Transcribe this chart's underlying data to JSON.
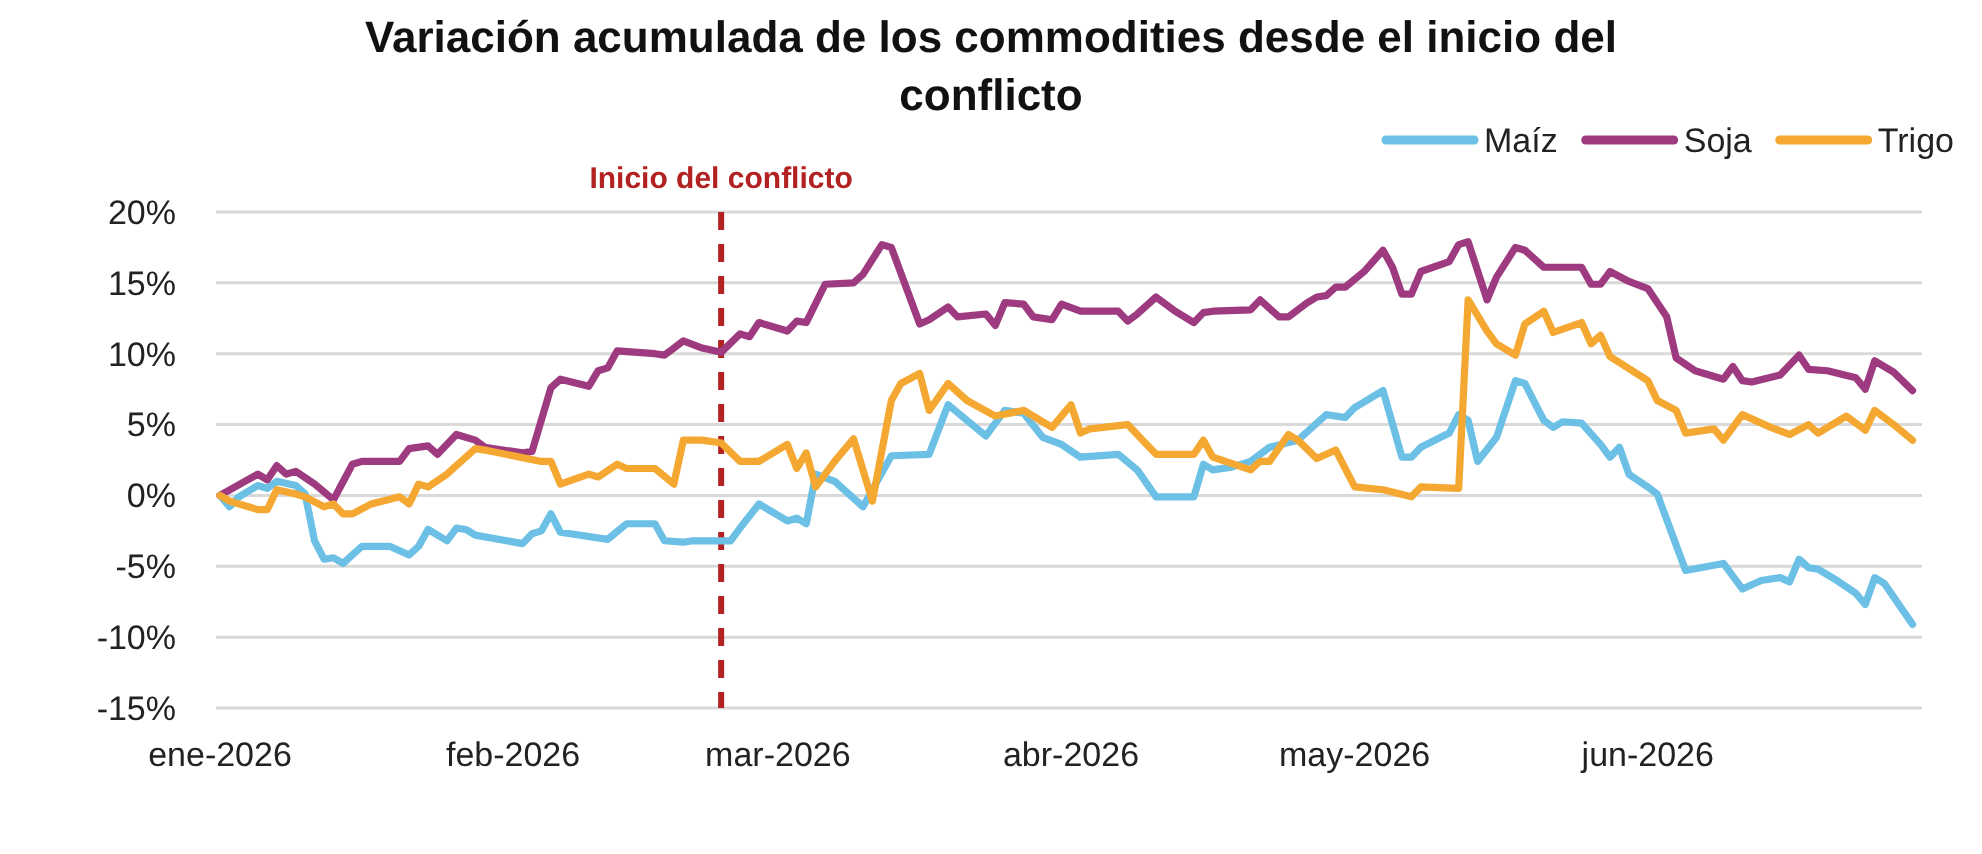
{
  "chart_data": {
    "type": "line",
    "title": "Variación acumulada de los commodities desde el inicio del conflicto",
    "xlim": [
      "2026-01-01",
      "2026-06-30"
    ],
    "xticks": [
      {
        "value": "2026-01-01",
        "label": "ene-2026"
      },
      {
        "value": "2026-02-01",
        "label": "feb-2026"
      },
      {
        "value": "2026-03-01",
        "label": "mar-2026"
      },
      {
        "value": "2026-04-01",
        "label": "abr-2026"
      },
      {
        "value": "2026-05-01",
        "label": "may-2026"
      },
      {
        "value": "2026-06-01",
        "label": "jun-2026"
      }
    ],
    "ylim": [
      -15,
      20
    ],
    "yticks": [
      {
        "value": -15,
        "label": "-15%"
      },
      {
        "value": -10,
        "label": "-10%"
      },
      {
        "value": -5,
        "label": "-5%"
      },
      {
        "value": 0,
        "label": "0%"
      },
      {
        "value": 5,
        "label": "5%"
      },
      {
        "value": 10,
        "label": "10%"
      },
      {
        "value": 15,
        "label": "15%"
      },
      {
        "value": 20,
        "label": "20%"
      }
    ],
    "grid": "y",
    "legend": "top right",
    "ref_lines": [
      {
        "axis": "x",
        "value": "2026-02-23",
        "label": "Inicio del conflicto",
        "color": "#b22222",
        "line_style": "dashed"
      }
    ],
    "series": [
      {
        "name": "Maíz",
        "color": "#6cc0e5",
        "x": [
          "2026-01-01",
          "2026-01-02",
          "2026-01-03",
          "2026-01-05",
          "2026-01-06",
          "2026-01-07",
          "2026-01-09",
          "2026-01-10",
          "2026-01-11",
          "2026-01-12",
          "2026-01-13",
          "2026-01-14",
          "2026-01-16",
          "2026-01-19",
          "2026-01-21",
          "2026-01-22",
          "2026-01-23",
          "2026-01-25",
          "2026-01-26",
          "2026-01-27",
          "2026-01-28",
          "2026-02-02",
          "2026-02-03",
          "2026-02-04",
          "2026-02-05",
          "2026-02-06",
          "2026-02-11",
          "2026-02-13",
          "2026-02-16",
          "2026-02-17",
          "2026-02-19",
          "2026-02-20",
          "2026-02-24",
          "2026-02-25",
          "2026-02-27",
          "2026-03-02",
          "2026-03-03",
          "2026-03-04",
          "2026-03-05",
          "2026-03-07",
          "2026-03-10",
          "2026-03-13",
          "2026-03-17",
          "2026-03-19",
          "2026-03-23",
          "2026-03-25",
          "2026-03-27",
          "2026-03-29",
          "2026-03-31",
          "2026-04-02",
          "2026-04-06",
          "2026-04-08",
          "2026-04-10",
          "2026-04-14",
          "2026-04-15",
          "2026-04-16",
          "2026-04-18",
          "2026-04-20",
          "2026-04-22",
          "2026-04-25",
          "2026-04-26",
          "2026-04-28",
          "2026-04-30",
          "2026-05-01",
          "2026-05-04",
          "2026-05-06",
          "2026-05-07",
          "2026-05-08",
          "2026-05-11",
          "2026-05-12",
          "2026-05-13",
          "2026-05-14",
          "2026-05-16",
          "2026-05-18",
          "2026-05-19",
          "2026-05-21",
          "2026-05-22",
          "2026-05-23",
          "2026-05-25",
          "2026-05-27",
          "2026-05-28",
          "2026-05-29",
          "2026-05-30",
          "2026-06-01",
          "2026-06-02",
          "2026-06-05",
          "2026-06-09",
          "2026-06-11",
          "2026-06-13",
          "2026-06-15",
          "2026-06-16",
          "2026-06-17",
          "2026-06-18",
          "2026-06-19",
          "2026-06-21",
          "2026-06-23",
          "2026-06-24",
          "2026-06-25",
          "2026-06-26",
          "2026-06-29"
        ],
        "values": [
          0,
          -0.8,
          -0.1,
          0.7,
          0.5,
          1.0,
          0.7,
          0.1,
          -3.2,
          -4.5,
          -4.4,
          -4.8,
          -3.6,
          -3.6,
          -4.2,
          -3.6,
          -2.4,
          -3.2,
          -2.3,
          -2.4,
          -2.8,
          -3.4,
          -2.7,
          -2.5,
          -1.3,
          -2.6,
          -3.1,
          -2.0,
          -2.0,
          -3.2,
          -3.3,
          -3.2,
          -3.2,
          -2.3,
          -0.6,
          -1.8,
          -1.6,
          -2.0,
          1.5,
          1.0,
          -0.8,
          2.8,
          2.9,
          6.4,
          4.2,
          6.0,
          5.8,
          4.1,
          3.6,
          2.7,
          2.9,
          1.8,
          -0.1,
          -0.1,
          2.2,
          1.8,
          2.0,
          2.4,
          3.4,
          3.9,
          4.5,
          5.7,
          5.5,
          6.2,
          7.4,
          2.7,
          2.7,
          3.4,
          4.4,
          5.7,
          5.3,
          2.4,
          4.1,
          8.1,
          7.9,
          5.3,
          4.8,
          5.2,
          5.1,
          3.6,
          2.7,
          3.4,
          1.5,
          0.6,
          0.1,
          -5.3,
          -4.8,
          -6.6,
          -6.0,
          -5.8,
          -6.1,
          -4.5,
          -5.1,
          -5.2,
          -6.0,
          -6.9,
          -7.7,
          -5.8,
          -6.2,
          -9.1
        ]
      },
      {
        "name": "Soja",
        "color": "#9e3a80",
        "x": [
          "2026-01-01",
          "2026-01-05",
          "2026-01-06",
          "2026-01-07",
          "2026-01-08",
          "2026-01-09",
          "2026-01-11",
          "2026-01-13",
          "2026-01-15",
          "2026-01-16",
          "2026-01-20",
          "2026-01-21",
          "2026-01-23",
          "2026-01-24",
          "2026-01-26",
          "2026-01-28",
          "2026-01-29",
          "2026-02-02",
          "2026-02-03",
          "2026-02-05",
          "2026-02-06",
          "2026-02-09",
          "2026-02-10",
          "2026-02-11",
          "2026-02-12",
          "2026-02-16",
          "2026-02-17",
          "2026-02-18",
          "2026-02-19",
          "2026-02-21",
          "2026-02-23",
          "2026-02-25",
          "2026-02-26",
          "2026-02-27",
          "2026-03-02",
          "2026-03-03",
          "2026-03-04",
          "2026-03-06",
          "2026-03-09",
          "2026-03-10",
          "2026-03-12",
          "2026-03-13",
          "2026-03-16",
          "2026-03-17",
          "2026-03-19",
          "2026-03-20",
          "2026-03-23",
          "2026-03-24",
          "2026-03-25",
          "2026-03-27",
          "2026-03-28",
          "2026-03-30",
          "2026-03-31",
          "2026-04-02",
          "2026-04-06",
          "2026-04-07",
          "2026-04-08",
          "2026-04-10",
          "2026-04-12",
          "2026-04-14",
          "2026-04-15",
          "2026-04-16",
          "2026-04-20",
          "2026-04-21",
          "2026-04-23",
          "2026-04-24",
          "2026-04-26",
          "2026-04-27",
          "2026-04-28",
          "2026-04-29",
          "2026-04-30",
          "2026-05-02",
          "2026-05-04",
          "2026-05-05",
          "2026-05-06",
          "2026-05-07",
          "2026-05-08",
          "2026-05-11",
          "2026-05-12",
          "2026-05-13",
          "2026-05-15",
          "2026-05-16",
          "2026-05-18",
          "2026-05-19",
          "2026-05-21",
          "2026-05-23",
          "2026-05-25",
          "2026-05-26",
          "2026-05-27",
          "2026-05-28",
          "2026-05-30",
          "2026-06-01",
          "2026-06-03",
          "2026-06-04",
          "2026-06-06",
          "2026-06-09",
          "2026-06-10",
          "2026-06-11",
          "2026-06-12",
          "2026-06-15",
          "2026-06-17",
          "2026-06-18",
          "2026-06-20",
          "2026-06-23",
          "2026-06-24",
          "2026-06-25",
          "2026-06-27",
          "2026-06-29"
        ],
        "values": [
          0,
          1.5,
          1.1,
          2.1,
          1.5,
          1.7,
          0.8,
          -0.3,
          2.2,
          2.4,
          2.4,
          3.3,
          3.5,
          2.9,
          4.3,
          3.9,
          3.4,
          3.0,
          3.1,
          7.6,
          8.2,
          7.7,
          8.8,
          9.0,
          10.2,
          10.0,
          9.9,
          10.4,
          10.9,
          10.4,
          10.1,
          11.4,
          11.2,
          12.2,
          11.6,
          12.3,
          12.2,
          14.9,
          15.0,
          15.6,
          17.7,
          17.5,
          12.1,
          12.4,
          13.3,
          12.6,
          12.8,
          12.0,
          13.6,
          13.5,
          12.6,
          12.4,
          13.5,
          13.0,
          13.0,
          12.3,
          12.8,
          14.0,
          13.0,
          12.2,
          12.9,
          13.0,
          13.1,
          13.8,
          12.6,
          12.6,
          13.6,
          14.0,
          14.1,
          14.7,
          14.7,
          15.8,
          17.3,
          16.1,
          14.2,
          14.2,
          15.8,
          16.5,
          17.7,
          17.9,
          13.8,
          15.4,
          17.5,
          17.3,
          16.1,
          16.1,
          16.1,
          14.9,
          14.9,
          15.8,
          15.1,
          14.6,
          12.6,
          9.7,
          8.8,
          8.2,
          9.1,
          8.1,
          8.0,
          8.5,
          9.9,
          8.9,
          8.8,
          8.3,
          7.5,
          9.5,
          8.7,
          7.4
        ]
      },
      {
        "name": "Trigo",
        "color": "#f4a832",
        "x": [
          "2026-01-01",
          "2026-01-02",
          "2026-01-04",
          "2026-01-05",
          "2026-01-06",
          "2026-01-07",
          "2026-01-09",
          "2026-01-10",
          "2026-01-12",
          "2026-01-13",
          "2026-01-14",
          "2026-01-15",
          "2026-01-17",
          "2026-01-20",
          "2026-01-21",
          "2026-01-22",
          "2026-01-23",
          "2026-01-25",
          "2026-01-28",
          "2026-01-29",
          "2026-02-04",
          "2026-02-05",
          "2026-02-06",
          "2026-02-09",
          "2026-02-10",
          "2026-02-12",
          "2026-02-13",
          "2026-02-16",
          "2026-02-18",
          "2026-02-19",
          "2026-02-21",
          "2026-02-23",
          "2026-02-25",
          "2026-02-27",
          "2026-03-02",
          "2026-03-03",
          "2026-03-04",
          "2026-03-05",
          "2026-03-07",
          "2026-03-09",
          "2026-03-11",
          "2026-03-13",
          "2026-03-14",
          "2026-03-16",
          "2026-03-17",
          "2026-03-19",
          "2026-03-21",
          "2026-03-24",
          "2026-03-27",
          "2026-03-30",
          "2026-04-01",
          "2026-04-02",
          "2026-04-03",
          "2026-04-07",
          "2026-04-09",
          "2026-04-10",
          "2026-04-14",
          "2026-04-15",
          "2026-04-16",
          "2026-04-20",
          "2026-04-21",
          "2026-04-22",
          "2026-04-24",
          "2026-04-25",
          "2026-04-27",
          "2026-04-29",
          "2026-05-01",
          "2026-05-04",
          "2026-05-07",
          "2026-05-08",
          "2026-05-12",
          "2026-05-13",
          "2026-05-15",
          "2026-05-16",
          "2026-05-18",
          "2026-05-19",
          "2026-05-21",
          "2026-05-22",
          "2026-05-25",
          "2026-05-26",
          "2026-05-27",
          "2026-05-28",
          "2026-06-01",
          "2026-06-02",
          "2026-06-04",
          "2026-06-05",
          "2026-06-08",
          "2026-06-09",
          "2026-06-11",
          "2026-06-14",
          "2026-06-16",
          "2026-06-18",
          "2026-06-19",
          "2026-06-22",
          "2026-06-24",
          "2026-06-25",
          "2026-06-27",
          "2026-06-29"
        ],
        "values": [
          0,
          -0.4,
          -0.8,
          -1.0,
          -1.0,
          0.4,
          0.1,
          -0.1,
          -0.8,
          -0.6,
          -1.3,
          -1.3,
          -0.6,
          -0.1,
          -0.6,
          0.8,
          0.6,
          1.5,
          3.3,
          3.2,
          2.4,
          2.4,
          0.8,
          1.5,
          1.3,
          2.2,
          1.9,
          1.9,
          0.8,
          3.9,
          3.9,
          3.7,
          2.4,
          2.4,
          3.6,
          1.9,
          3.0,
          0.6,
          2.4,
          4.0,
          -0.4,
          6.7,
          7.9,
          8.6,
          6.0,
          7.9,
          6.7,
          5.6,
          6.0,
          4.8,
          6.4,
          4.4,
          4.7,
          5.0,
          3.6,
          2.9,
          2.9,
          3.9,
          2.7,
          1.8,
          2.4,
          2.4,
          4.3,
          3.9,
          2.6,
          3.2,
          0.6,
          0.4,
          -0.1,
          0.6,
          0.5,
          13.8,
          11.6,
          10.7,
          9.9,
          12.1,
          13.0,
          11.5,
          12.2,
          10.7,
          11.3,
          9.8,
          8.1,
          6.7,
          6.0,
          4.4,
          4.7,
          3.9,
          5.7,
          4.8,
          4.3,
          5.0,
          4.4,
          5.6,
          4.6,
          6.0,
          5.0,
          3.9
        ]
      }
    ]
  }
}
